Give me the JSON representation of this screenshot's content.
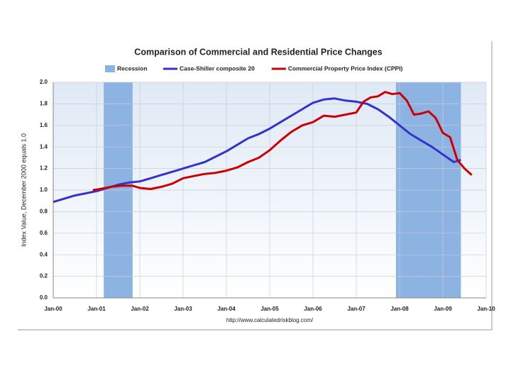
{
  "chart_data": {
    "type": "line",
    "title": "Comparison of Commercial and Residential Price Changes",
    "ylabel": "Index Value, December 2000 equals 1.0",
    "source": "http://www.calculatedriskblog.com/",
    "recession": {
      "name": "Recession",
      "color": "#8db3e2",
      "ranges": [
        [
          14,
          22
        ],
        [
          95,
          113
        ]
      ]
    },
    "xlim": [
      0,
      120
    ],
    "xticks": [
      {
        "value": 0,
        "label": "Jan-00"
      },
      {
        "value": 12,
        "label": "Jan-01"
      },
      {
        "value": 24,
        "label": "Jan-02"
      },
      {
        "value": 36,
        "label": "Jan-03"
      },
      {
        "value": 48,
        "label": "Jan-04"
      },
      {
        "value": 60,
        "label": "Jan-05"
      },
      {
        "value": 72,
        "label": "Jan-06"
      },
      {
        "value": 84,
        "label": "Jan-07"
      },
      {
        "value": 96,
        "label": "Jan-08"
      },
      {
        "value": 108,
        "label": "Jan-09"
      },
      {
        "value": 120,
        "label": "Jan-10"
      }
    ],
    "ylim": [
      0,
      2
    ],
    "yticks": [
      {
        "value": 0,
        "label": "0.0"
      },
      {
        "value": 0.2,
        "label": "0.2"
      },
      {
        "value": 0.4,
        "label": "0.4"
      },
      {
        "value": 0.6,
        "label": "0.6"
      },
      {
        "value": 0.8,
        "label": "0.8"
      },
      {
        "value": 1,
        "label": "1.0"
      },
      {
        "value": 1.2,
        "label": "1.2"
      },
      {
        "value": 1.4,
        "label": "1.4"
      },
      {
        "value": 1.6,
        "label": "1.6"
      },
      {
        "value": 1.8,
        "label": "1.8"
      },
      {
        "value": 2,
        "label": "2.0"
      }
    ],
    "grid": true,
    "series": [
      {
        "name": "Case-Shiller composite 20",
        "color": "#3333cc",
        "x": [
          0,
          3,
          6,
          9,
          12,
          15,
          18,
          21,
          24,
          27,
          30,
          33,
          36,
          39,
          42,
          45,
          48,
          51,
          54,
          57,
          60,
          63,
          66,
          69,
          72,
          75,
          78,
          81,
          84,
          87,
          90,
          93,
          96,
          99,
          102,
          105,
          108,
          111,
          113
        ],
        "values": [
          0.89,
          0.92,
          0.95,
          0.97,
          0.99,
          1.02,
          1.05,
          1.07,
          1.08,
          1.11,
          1.14,
          1.17,
          1.2,
          1.23,
          1.26,
          1.31,
          1.36,
          1.42,
          1.48,
          1.52,
          1.57,
          1.63,
          1.69,
          1.75,
          1.81,
          1.84,
          1.85,
          1.83,
          1.82,
          1.8,
          1.75,
          1.68,
          1.6,
          1.52,
          1.46,
          1.4,
          1.33,
          1.26,
          1.28
        ]
      },
      {
        "name": "Commercial Property Price Index (CPPI)",
        "color": "#cc0000",
        "x": [
          11,
          13,
          16,
          19,
          22,
          24,
          27,
          30,
          33,
          36,
          39,
          42,
          45,
          48,
          51,
          54,
          57,
          60,
          63,
          66,
          69,
          72,
          75,
          78,
          81,
          84,
          86,
          88,
          90,
          92,
          94,
          96,
          98,
          100,
          102,
          104,
          106,
          108,
          110,
          112,
          114,
          116
        ],
        "values": [
          1.0,
          1.01,
          1.03,
          1.04,
          1.04,
          1.02,
          1.01,
          1.03,
          1.06,
          1.11,
          1.13,
          1.15,
          1.16,
          1.18,
          1.21,
          1.26,
          1.3,
          1.37,
          1.46,
          1.54,
          1.6,
          1.63,
          1.69,
          1.68,
          1.7,
          1.72,
          1.82,
          1.86,
          1.87,
          1.91,
          1.89,
          1.9,
          1.83,
          1.7,
          1.71,
          1.73,
          1.67,
          1.53,
          1.49,
          1.28,
          1.2,
          1.14
        ]
      }
    ]
  }
}
